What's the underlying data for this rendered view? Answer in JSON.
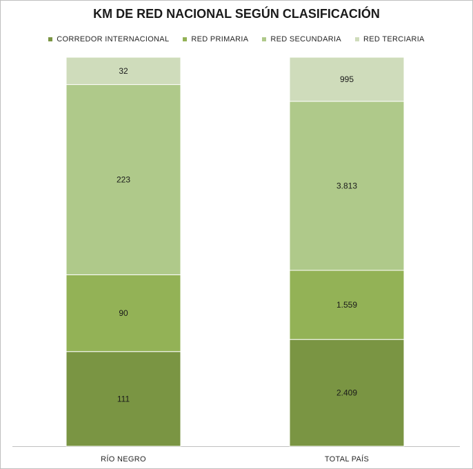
{
  "chart_data": {
    "type": "bar",
    "stacked": true,
    "title": "KM DE RED NACIONAL SEGÚN CLASIFICACIÓN",
    "categories": [
      "RÍO NEGRO",
      "TOTAL PAÍS"
    ],
    "series": [
      {
        "name": "CORREDOR INTERNACIONAL",
        "color": "#7a9543",
        "values": [
          111,
          2409
        ],
        "labels": [
          "111",
          "2.409"
        ]
      },
      {
        "name": "RED PRIMARIA",
        "color": "#93b256",
        "values": [
          90,
          1559
        ],
        "labels": [
          "90",
          "1.559"
        ]
      },
      {
        "name": "RED SECUNDARIA",
        "color": "#afc98a",
        "values": [
          223,
          3813
        ],
        "labels": [
          "223",
          "3.813"
        ]
      },
      {
        "name": "RED TERCIARIA",
        "color": "#cfdcbb",
        "values": [
          32,
          995
        ],
        "labels": [
          "32",
          "995"
        ]
      }
    ],
    "normalized_100_percent": true,
    "legend_position": "top",
    "grid": false,
    "xlabel": "",
    "ylabel": ""
  }
}
